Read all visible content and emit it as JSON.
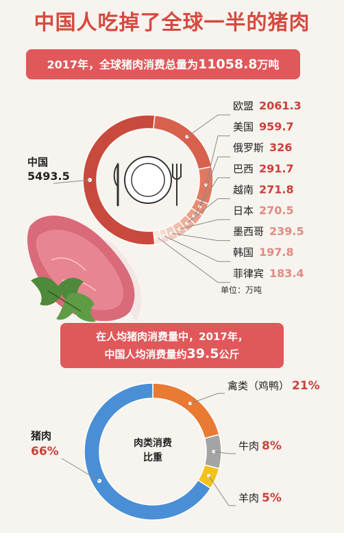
{
  "title": "中国人吃掉了全球一半的猪肉",
  "banner1": {
    "prefix": "2017年，全球猪肉消费总量为",
    "value": "11058.8",
    "suffix": "万吨"
  },
  "banner2": {
    "line1": "在人均猪肉消费量中，2017年，",
    "line2_prefix": "中国人均消费量约",
    "line2_value": "39.5",
    "line2_suffix": "公斤"
  },
  "unit_note": "单位：万吨",
  "donut2_center": [
    "肉类消费",
    "比重"
  ],
  "chart_data": [
    {
      "type": "pie",
      "title": "",
      "unit": "万吨",
      "categories": [
        "中国",
        "欧盟",
        "美国",
        "俄罗斯",
        "巴西",
        "越南",
        "日本",
        "墨西哥",
        "韩国",
        "菲律宾"
      ],
      "values": [
        5493.5,
        2061.3,
        959.7,
        326,
        291.7,
        271.8,
        270.5,
        239.5,
        197.8,
        183.4
      ],
      "value_labels": [
        "5493.5",
        "2061.3",
        "959.7",
        "326",
        "291.7",
        "271.8",
        "270.5",
        "239.5",
        "197.8",
        "183.4"
      ],
      "total": 11058.8,
      "colors": [
        "#c84a3c",
        "#d8614e",
        "#e2785f",
        "#e88c74",
        "#eb9d86",
        "#eeae99",
        "#f1bdab",
        "#f3cbbe",
        "#f5d8cf",
        "#f7e5de"
      ]
    },
    {
      "type": "pie",
      "title": "",
      "categories": [
        "猪肉",
        "禽类（鸡鸭）",
        "牛肉",
        "羊肉"
      ],
      "values": [
        66,
        21,
        8,
        5
      ],
      "value_labels": [
        "66%",
        "21%",
        "8%",
        "5%"
      ],
      "colors": [
        "#4a8fd6",
        "#e87a34",
        "#a4a4a4",
        "#f2c21b"
      ]
    }
  ]
}
